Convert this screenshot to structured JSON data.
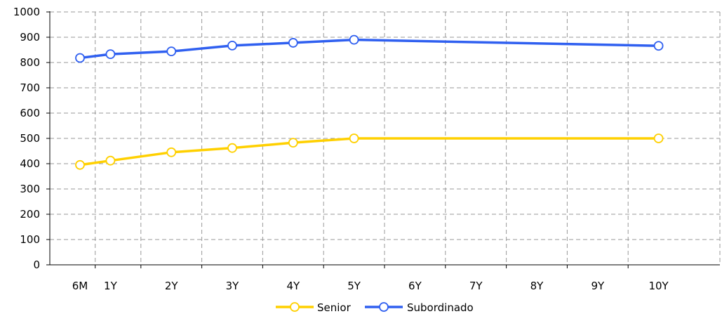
{
  "chart_data": {
    "type": "line",
    "title": "",
    "xlabel": "",
    "ylabel": "",
    "categories": [
      "6M",
      "1Y",
      "2Y",
      "3Y",
      "4Y",
      "5Y",
      "6Y",
      "7Y",
      "8Y",
      "9Y",
      "10Y"
    ],
    "x_positions": [
      0.5,
      1,
      2,
      3,
      4,
      5,
      6,
      7,
      8,
      9,
      10
    ],
    "ylim": [
      0,
      1000
    ],
    "yticks": [
      0,
      100,
      200,
      300,
      400,
      500,
      600,
      700,
      800,
      900,
      1000
    ],
    "grid": true,
    "legend": "bottom-center",
    "series": [
      {
        "name": "Senior",
        "color": "#FFD000",
        "marker": "hollow-circle",
        "points": [
          {
            "x": "6M",
            "y": 395
          },
          {
            "x": "1Y",
            "y": 412
          },
          {
            "x": "2Y",
            "y": 445
          },
          {
            "x": "3Y",
            "y": 462
          },
          {
            "x": "4Y",
            "y": 483
          },
          {
            "x": "5Y",
            "y": 500
          },
          {
            "x": "10Y",
            "y": 500
          }
        ]
      },
      {
        "name": "Subordinado",
        "color": "#3060F0",
        "marker": "hollow-circle",
        "points": [
          {
            "x": "6M",
            "y": 818
          },
          {
            "x": "1Y",
            "y": 833
          },
          {
            "x": "2Y",
            "y": 844
          },
          {
            "x": "3Y",
            "y": 867
          },
          {
            "x": "4Y",
            "y": 878
          },
          {
            "x": "5Y",
            "y": 890
          },
          {
            "x": "10Y",
            "y": 866
          }
        ]
      }
    ]
  }
}
